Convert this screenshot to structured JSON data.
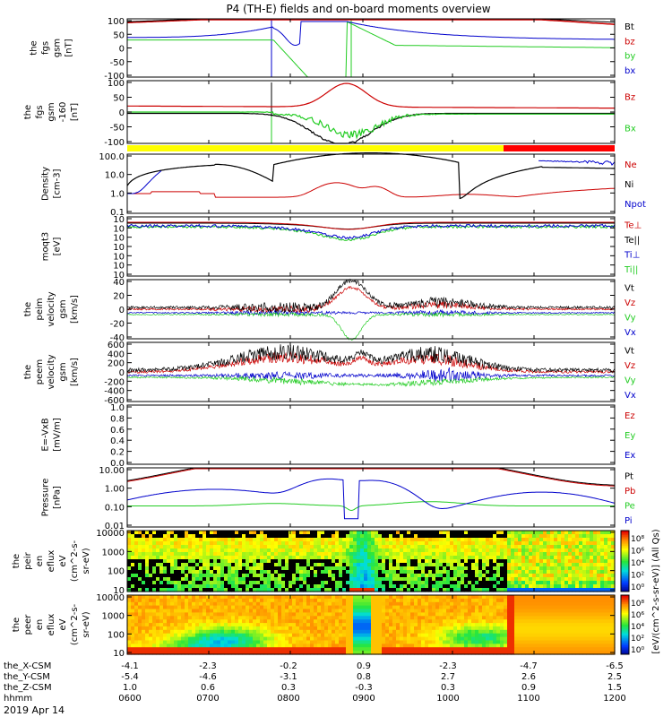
{
  "title": "P4 (TH-E) fields and on-board moments overview",
  "date_label": "2019 Apr 14",
  "colors": {
    "black": "#000000",
    "red": "#cc0000",
    "green": "#22cc22",
    "blue": "#0000cc",
    "yellow": "#ffff00"
  },
  "chart_data": [
    {
      "type": "line",
      "id": "fgs",
      "ylabel": [
        "the",
        "fgs",
        "gsm",
        "[nT]"
      ],
      "yticks": [
        "100",
        "50",
        "0",
        "-50",
        "-100"
      ],
      "series": [
        {
          "name": "Bt",
          "color": "black"
        },
        {
          "name": "bz",
          "color": "red"
        },
        {
          "name": "by",
          "color": "green"
        },
        {
          "name": "bx",
          "color": "blue"
        }
      ]
    },
    {
      "type": "line",
      "id": "fgs_dsl",
      "ylabel": [
        "the",
        "fgs",
        "gsm",
        "-160",
        "[nT]"
      ],
      "yticks": [
        "100",
        "50",
        "0",
        "-50",
        "-100"
      ],
      "series": [
        {
          "name": "Bz",
          "color": "red"
        },
        {
          "name": "Bx",
          "color": "green"
        }
      ]
    },
    {
      "type": "line",
      "id": "density",
      "ylabel": [
        "Density",
        "[cm-3]"
      ],
      "yticks": [
        "100.0",
        "10.0",
        "1.0",
        "0.1"
      ],
      "log": true,
      "series": [
        {
          "name": "Ne",
          "color": "red"
        },
        {
          "name": "Ni",
          "color": "black"
        },
        {
          "name": "Npot",
          "color": "blue"
        }
      ]
    },
    {
      "type": "line",
      "id": "temp",
      "ylabel": [
        "moqt3",
        "[eV]"
      ],
      "yticks": [
        "10",
        "10",
        "10",
        "10",
        "10",
        "10",
        "10"
      ],
      "log": true,
      "series": [
        {
          "name": "Te⊥",
          "color": "red"
        },
        {
          "name": "Te||",
          "color": "black"
        },
        {
          "name": "Ti⊥",
          "color": "blue"
        },
        {
          "name": "Ti||",
          "color": "green"
        }
      ]
    },
    {
      "type": "line",
      "id": "peim",
      "ylabel": [
        "the",
        "peim",
        "velocity",
        "gsm",
        "[km/s]"
      ],
      "yticks": [
        "40",
        "20",
        "0",
        "-20",
        "-40"
      ],
      "series": [
        {
          "name": "Vt",
          "color": "black"
        },
        {
          "name": "Vz",
          "color": "red"
        },
        {
          "name": "Vy",
          "color": "green"
        },
        {
          "name": "Vx",
          "color": "blue"
        }
      ]
    },
    {
      "type": "line",
      "id": "peem",
      "ylabel": [
        "the",
        "peem",
        "velocity",
        "gsm",
        "[km/s]"
      ],
      "yticks": [
        "600",
        "400",
        "200",
        "0",
        "-200",
        "-400",
        "-600"
      ],
      "series": [
        {
          "name": "Vt",
          "color": "black"
        },
        {
          "name": "Vz",
          "color": "red"
        },
        {
          "name": "Vy",
          "color": "green"
        },
        {
          "name": "Vx",
          "color": "blue"
        }
      ]
    },
    {
      "type": "line",
      "id": "evb",
      "ylabel": [
        "E=-VxB",
        "[mV/m]"
      ],
      "yticks": [
        "1.0",
        "0.8",
        "0.6",
        "0.4",
        "0.2",
        "0.0"
      ],
      "series": [
        {
          "name": "Ez",
          "color": "red"
        },
        {
          "name": "Ey",
          "color": "green"
        },
        {
          "name": "Ex",
          "color": "blue"
        }
      ]
    },
    {
      "type": "line",
      "id": "pressure",
      "ylabel": [
        "Pressure",
        "[nPa]"
      ],
      "yticks": [
        "10.00",
        "1.00",
        "0.10",
        "0.01"
      ],
      "log": true,
      "series": [
        {
          "name": "Pt",
          "color": "black"
        },
        {
          "name": "Pb",
          "color": "red"
        },
        {
          "name": "Pe",
          "color": "green"
        },
        {
          "name": "Pi",
          "color": "blue"
        }
      ]
    },
    {
      "type": "heatmap",
      "id": "peir",
      "ylabel": [
        "the",
        "peir",
        "en",
        "eflux",
        "eV",
        "(cm^2-s-",
        "sr-eV)"
      ],
      "yticks": [
        "10000",
        "1000",
        "100",
        "10"
      ]
    },
    {
      "type": "heatmap",
      "id": "peer",
      "ylabel": [
        "the",
        "peer",
        "en",
        "eflux",
        "eV",
        "(cm^2-s-",
        "sr-eV)"
      ],
      "yticks": [
        "10000",
        "1000",
        "100",
        "10"
      ]
    }
  ],
  "colorbar": {
    "ticks": [
      "10⁸",
      "10⁶",
      "10⁴",
      "10²",
      "10⁰"
    ],
    "label": "[eV/(cm^2-s-sr-eV)] (All Qs)"
  },
  "xaxis": {
    "row_labels": [
      "the_X-CSM",
      "the_Y-CSM",
      "the_Z-CSM",
      "hhmm"
    ],
    "ticks": [
      {
        "x": "-4.1",
        "y": "-5.4",
        "z": "1.0",
        "t": "0600"
      },
      {
        "x": "-2.3",
        "y": "-4.6",
        "z": "0.6",
        "t": "0700"
      },
      {
        "x": "-0.2",
        "y": "-3.1",
        "z": "0.3",
        "t": "0800"
      },
      {
        "x": "0.9",
        "y": "0.8",
        "z": "-0.3",
        "t": "0900"
      },
      {
        "x": "-2.3",
        "y": "2.7",
        "z": "0.3",
        "t": "1000"
      },
      {
        "x": "-4.7",
        "y": "2.6",
        "z": "0.9",
        "t": "1100"
      },
      {
        "x": "-6.5",
        "y": "2.5",
        "z": "1.5",
        "t": "1200"
      }
    ]
  }
}
